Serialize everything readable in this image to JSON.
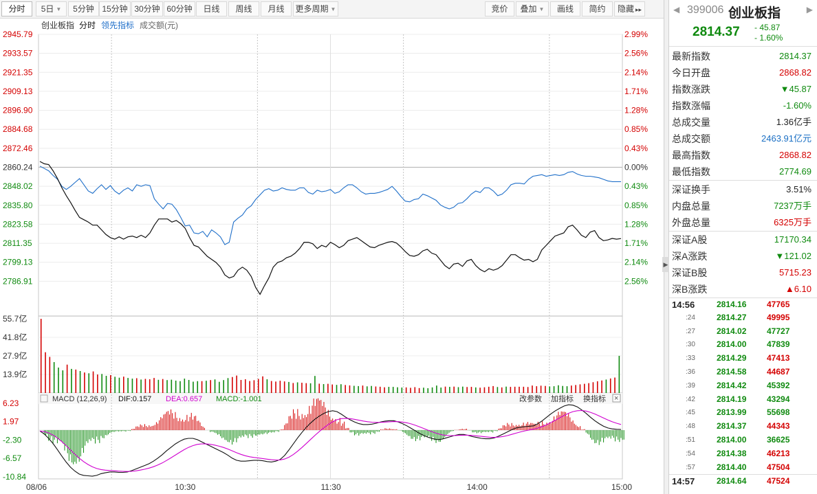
{
  "toolbar": {
    "left": [
      {
        "label": "分时",
        "active": true,
        "dropdown": false
      },
      {
        "label": "5日",
        "active": false,
        "dropdown": true
      },
      {
        "label": "5分钟",
        "active": false,
        "dropdown": false
      },
      {
        "label": "15分钟",
        "active": false,
        "dropdown": false
      },
      {
        "label": "30分钟",
        "active": false,
        "dropdown": false
      },
      {
        "label": "60分钟",
        "active": false,
        "dropdown": false
      },
      {
        "label": "日线",
        "active": false,
        "dropdown": false
      },
      {
        "label": "周线",
        "active": false,
        "dropdown": false
      },
      {
        "label": "月线",
        "active": false,
        "dropdown": false
      },
      {
        "label": "更多周期",
        "active": false,
        "dropdown": true
      }
    ],
    "right": [
      {
        "label": "竞价",
        "dropdown": false
      },
      {
        "label": "叠加",
        "dropdown": true
      },
      {
        "label": "画线",
        "dropdown": false
      },
      {
        "label": "简约",
        "dropdown": false
      },
      {
        "label": "隐藏",
        "dropdown": false,
        "suffix": "▸▸"
      }
    ]
  },
  "chart_header": {
    "index_name": "创业板指",
    "mode": "分时",
    "lead_indicator": "领先指标",
    "volume_label": "成交额(元)"
  },
  "price_axis": {
    "left": [
      "2945.79",
      "2933.57",
      "2921.35",
      "2909.13",
      "2896.90",
      "2884.68",
      "2872.46",
      "2860.24",
      "2848.02",
      "2835.80",
      "2823.58",
      "2811.35",
      "2799.13",
      "2786.91"
    ],
    "right": [
      "2.99%",
      "2.56%",
      "2.14%",
      "1.71%",
      "1.28%",
      "0.85%",
      "0.43%",
      "0.00%",
      "0.43%",
      "0.85%",
      "1.28%",
      "1.71%",
      "2.14%",
      "2.56%"
    ]
  },
  "volume_axis": [
    "55.7亿",
    "41.8亿",
    "27.9亿",
    "13.9亿"
  ],
  "macd_header": {
    "title": "MACD (12,26,9)",
    "dif": "DIF:0.157",
    "dea": "DEA:0.657",
    "macd": "MACD:-1.001",
    "change_params": "改参数",
    "add_indicator": "加指标",
    "switch_indicator": "换指标"
  },
  "macd_axis": [
    "6.23",
    "1.97",
    "-2.30",
    "-6.57",
    "-10.84"
  ],
  "time_axis": [
    "08/06",
    "10:30",
    "11:30",
    "14:00",
    "15:00"
  ],
  "colors": {
    "price_line": "#111111",
    "lead_line": "#1f6fc9",
    "up": "#d40000",
    "down": "#0f8a0f",
    "dif_line": "#111111",
    "dea_line": "#d000d0"
  },
  "quote": {
    "code": "399006",
    "name": "创业板指",
    "price": "2814.37",
    "change": "- 45.87",
    "change_pct": "- 1.60%"
  },
  "stats_a": [
    {
      "label": "最新指数",
      "value": "2814.37",
      "color": "green"
    },
    {
      "label": "今日开盘",
      "value": "2868.82",
      "color": "red"
    },
    {
      "label": "指数涨跌",
      "value": "▼45.87",
      "color": "green"
    },
    {
      "label": "指数涨幅",
      "value": "-1.60%",
      "color": "green"
    },
    {
      "label": "总成交量",
      "value": "1.36亿手",
      "color": "black"
    },
    {
      "label": "总成交额",
      "value": "2463.91亿元",
      "color": "blue"
    },
    {
      "label": "最高指数",
      "value": "2868.82",
      "color": "red"
    },
    {
      "label": "最低指数",
      "value": "2774.69",
      "color": "green"
    }
  ],
  "stats_b": [
    {
      "label": "深证换手",
      "value": "3.51%",
      "color": "black"
    },
    {
      "label": "内盘总量",
      "value": "7237万手",
      "color": "green"
    },
    {
      "label": "外盘总量",
      "value": "6325万手",
      "color": "red"
    }
  ],
  "stats_c": [
    {
      "label": "深证A股",
      "value": "17170.34",
      "color": "green"
    },
    {
      "label": "深A涨跌",
      "value": "▼121.02",
      "color": "green"
    },
    {
      "label": "深证B股",
      "value": "5715.23",
      "color": "red"
    },
    {
      "label": "深B涨跌",
      "value": "▲6.10",
      "color": "red"
    }
  ],
  "ticks": [
    {
      "time": "14:56",
      "minute": true,
      "price": "2814.16",
      "vol": "47765",
      "vol_color": "red"
    },
    {
      "time": ":24",
      "minute": false,
      "price": "2814.27",
      "vol": "49995",
      "vol_color": "red"
    },
    {
      "time": ":27",
      "minute": false,
      "price": "2814.02",
      "vol": "47727",
      "vol_color": "green"
    },
    {
      "time": ":30",
      "minute": false,
      "price": "2814.00",
      "vol": "47839",
      "vol_color": "green"
    },
    {
      "time": ":33",
      "minute": false,
      "price": "2814.29",
      "vol": "47413",
      "vol_color": "red"
    },
    {
      "time": ":36",
      "minute": false,
      "price": "2814.58",
      "vol": "44687",
      "vol_color": "red"
    },
    {
      "time": ":39",
      "minute": false,
      "price": "2814.42",
      "vol": "45392",
      "vol_color": "green"
    },
    {
      "time": ":42",
      "minute": false,
      "price": "2814.19",
      "vol": "43294",
      "vol_color": "green"
    },
    {
      "time": ":45",
      "minute": false,
      "price": "2813.99",
      "vol": "55698",
      "vol_color": "green"
    },
    {
      "time": ":48",
      "minute": false,
      "price": "2814.37",
      "vol": "44343",
      "vol_color": "red"
    },
    {
      "time": ":51",
      "minute": false,
      "price": "2814.00",
      "vol": "36625",
      "vol_color": "green"
    },
    {
      "time": ":54",
      "minute": false,
      "price": "2814.38",
      "vol": "46213",
      "vol_color": "red"
    },
    {
      "time": ":57",
      "minute": false,
      "price": "2814.40",
      "vol": "47504",
      "vol_color": "red"
    },
    {
      "time": "14:57",
      "minute": true,
      "price": "2814.64",
      "vol": "47524",
      "vol_color": "red"
    }
  ],
  "chart_data": {
    "type": "line",
    "prev_close": 2860.24,
    "ylim": [
      2774.69,
      2945.79
    ],
    "series": [
      {
        "name": "创业板指",
        "values": [
          2864.0,
          2862.5,
          2862.0,
          2858.0,
          2853.0,
          2847.0,
          2842.0,
          2837.5,
          2832.5,
          2828.0,
          2826.5,
          2825.0,
          2823.0,
          2823.0,
          2820.0,
          2817.0,
          2815.0,
          2814.0,
          2815.5,
          2814.0,
          2815.5,
          2816.0,
          2815.0,
          2816.5,
          2815.0,
          2818.0,
          2823.0,
          2827.0,
          2827.0,
          2827.0,
          2825.0,
          2826.0,
          2824.0,
          2821.0,
          2815.0,
          2810.0,
          2809.0,
          2806.0,
          2803.0,
          2801.0,
          2799.0,
          2796.0,
          2791.0,
          2789.0,
          2790.0,
          2794.0,
          2796.0,
          2794.0,
          2790.0,
          2783.0,
          2778.5,
          2784.0,
          2789.0,
          2796.0,
          2799.0,
          2800.0,
          2802.0,
          2803.0,
          2805.0,
          2808.0,
          2812.0,
          2812.0,
          2811.0,
          2808.0,
          2810.0,
          2809.0,
          2812.0,
          2810.5,
          2808.5,
          2810.0,
          2813.0,
          2814.0,
          2815.0,
          2813.0,
          2811.0,
          2809.0,
          2808.5,
          2810.0,
          2811.0,
          2812.0,
          2812.5,
          2811.5,
          2809.0,
          2806.0,
          2803.5,
          2803.0,
          2804.0,
          2806.5,
          2807.5,
          2805.0,
          2804.0,
          2800.5,
          2797.0,
          2795.0,
          2798.0,
          2798.5,
          2796.5,
          2800.0,
          2801.0,
          2797.0,
          2794.5,
          2793.0,
          2795.0,
          2794.0,
          2795.0,
          2797.0,
          2800.5,
          2804.0,
          2804.0,
          2802.0,
          2800.5,
          2801.0,
          2799.5,
          2801.0,
          2807.0,
          2810.0,
          2813.0,
          2816.0,
          2817.0,
          2818.0,
          2822.0,
          2823.0,
          2820.0,
          2816.5,
          2815.0,
          2818.5,
          2819.5,
          2815.0,
          2813.0,
          2813.5,
          2814.5,
          2814.0,
          2814.4
        ]
      },
      {
        "name": "领先指标",
        "values": [
          2861.0,
          2859.5,
          2858.0,
          2855.0,
          2852.5,
          2848.0,
          2846.0,
          2848.0,
          2850.5,
          2853.0,
          2849.0,
          2845.0,
          2843.5,
          2846.5,
          2849.0,
          2846.0,
          2848.5,
          2845.0,
          2843.0,
          2845.5,
          2847.0,
          2845.0,
          2849.0,
          2848.0,
          2849.0,
          2848.5,
          2840.0,
          2836.5,
          2833.5,
          2837.0,
          2836.5,
          2833.0,
          2828.0,
          2822.5,
          2823.0,
          2818.0,
          2817.5,
          2819.0,
          2815.5,
          2820.0,
          2818.0,
          2815.5,
          2810.5,
          2812.0,
          2825.0,
          2827.5,
          2829.5,
          2833.5,
          2835.5,
          2839.5,
          2842.5,
          2845.5,
          2846.5,
          2845.0,
          2845.5,
          2847.0,
          2846.0,
          2845.5,
          2845.5,
          2847.0,
          2847.0,
          2844.0,
          2843.0,
          2845.5,
          2844.5,
          2845.0,
          2846.0,
          2843.5,
          2844.5,
          2847.0,
          2849.0,
          2849.0,
          2847.0,
          2844.5,
          2843.0,
          2843.5,
          2843.5,
          2844.0,
          2845.0,
          2846.0,
          2848.0,
          2845.0,
          2841.5,
          2838.5,
          2838.0,
          2839.5,
          2840.0,
          2843.0,
          2842.0,
          2840.5,
          2839.0,
          2836.0,
          2834.5,
          2833.5,
          2834.5,
          2837.0,
          2837.5,
          2840.0,
          2843.0,
          2845.0,
          2844.0,
          2847.0,
          2847.0,
          2845.0,
          2842.0,
          2843.0,
          2845.5,
          2849.0,
          2850.0,
          2850.0,
          2849.5,
          2852.5,
          2854.5,
          2855.0,
          2855.5,
          2854.5,
          2855.0,
          2855.5,
          2855.0,
          2855.5,
          2857.0,
          2857.5,
          2856.0,
          2855.0,
          2854.5,
          2854.5,
          2854.0,
          2853.5,
          2852.5,
          2851.5,
          2851.0,
          2851.0,
          2851.0
        ]
      }
    ],
    "volume": {
      "ylim": [
        0,
        55.7
      ],
      "values": [
        55.7,
        30.6,
        27.1,
        23.2,
        19.1,
        17.0,
        21.3,
        18.1,
        17.6,
        16.5,
        15.4,
        14.8,
        16.2,
        13.9,
        14.3,
        12.9,
        13.4,
        12.2,
        11.5,
        12.3,
        11.3,
        10.8,
        11.1,
        10.1,
        10.6,
        10.3,
        11.3,
        9.9,
        10.5,
        9.7,
        10.0,
        9.3,
        8.9,
        10.8,
        9.8,
        8.5,
        8.9,
        8.9,
        9.2,
        9.7,
        10.2,
        8.4,
        9.7,
        11.2,
        12.0,
        13.1,
        9.8,
        10.3,
        9.0,
        9.6,
        10.6,
        12.5,
        10.3,
        9.0,
        8.6,
        9.2,
        8.7,
        8.3,
        7.5,
        8.0,
        7.7,
        7.4,
        7.3,
        12.8,
        7.0,
        6.7,
        6.9,
        6.4,
        6.1,
        6.6,
        6.0,
        5.7,
        5.4,
        5.2,
        5.6,
        5.0,
        5.3,
        4.9,
        4.7,
        4.3,
        4.6,
        4.6,
        4.3,
        4.1,
        4.2,
        3.9,
        4.4,
        3.7,
        4.0,
        3.6,
        4.2,
        5.6,
        4.1,
        4.8,
        4.6,
        4.8,
        4.4,
        4.8,
        4.5,
        4.6,
        4.2,
        4.0,
        4.3,
        4.7,
        5.2,
        4.5,
        4.2,
        4.8,
        4.6,
        4.7,
        4.7,
        4.7,
        4.5,
        5.6,
        5.1,
        5.5,
        5.3,
        4.9,
        5.1,
        5.8,
        5.3,
        5.1,
        5.6,
        6.0,
        6.5,
        6.9,
        7.4,
        8.1,
        8.8,
        9.4,
        10.1,
        10.9,
        11.6,
        27.9
      ],
      "colors": [
        "red",
        "red",
        "red",
        "green",
        "green",
        "green",
        "red",
        "green",
        "red",
        "green",
        "red",
        "green",
        "red",
        "red",
        "green",
        "green",
        "red",
        "green",
        "green",
        "red",
        "green",
        "green",
        "red",
        "green",
        "red",
        "red",
        "red",
        "green",
        "red",
        "green",
        "green",
        "green",
        "green",
        "green",
        "green",
        "green",
        "green",
        "red",
        "green",
        "red",
        "green",
        "green",
        "green",
        "green",
        "red",
        "red",
        "red",
        "red",
        "red",
        "red",
        "red",
        "red",
        "green",
        "red",
        "red",
        "red",
        "red",
        "green",
        "red",
        "green",
        "red",
        "red",
        "green",
        "green",
        "red",
        "green",
        "red",
        "red",
        "green",
        "green",
        "red",
        "red",
        "green",
        "green",
        "red",
        "green",
        "green",
        "red",
        "red",
        "red",
        "green",
        "green",
        "green",
        "green",
        "red",
        "red",
        "red",
        "red",
        "green",
        "green",
        "green",
        "green",
        "green",
        "red",
        "green",
        "red",
        "green",
        "green",
        "red",
        "red",
        "green",
        "red",
        "red",
        "red",
        "red",
        "green",
        "red",
        "green",
        "red",
        "red",
        "red",
        "red",
        "red",
        "red",
        "red",
        "red",
        "red",
        "green",
        "green",
        "green",
        "green",
        "green",
        "red",
        "red",
        "red",
        "red",
        "red",
        "red",
        "red",
        "red",
        "green",
        "red",
        "red",
        "green",
        "green",
        "green"
      ]
    },
    "macd": {
      "ylim": [
        -10.84,
        6.23
      ],
      "dif": [
        -0.2,
        -0.9,
        -1.9,
        -3.1,
        -4.5,
        -6.0,
        -7.4,
        -8.6,
        -9.5,
        -10.2,
        -10.5,
        -10.6,
        -10.7,
        -10.5,
        -10.1,
        -9.9,
        -9.7,
        -9.7,
        -9.8,
        -9.8,
        -9.7,
        -9.4,
        -9.0,
        -8.6,
        -8.2,
        -7.8,
        -7.2,
        -6.5,
        -5.7,
        -4.8,
        -4.0,
        -3.2,
        -2.6,
        -2.1,
        -1.9,
        -1.9,
        -2.2,
        -2.7,
        -3.2,
        -3.7,
        -4.2,
        -4.7,
        -5.2,
        -5.8,
        -6.5,
        -7.0,
        -7.2,
        -7.2,
        -7.1,
        -7.0,
        -7.0,
        -7.1,
        -7.3,
        -7.4,
        -7.2,
        -6.8,
        -5.9,
        -4.6,
        -3.2,
        -1.8,
        -0.5,
        0.7,
        1.7,
        2.6,
        3.3,
        3.9,
        4.3,
        4.5,
        4.3,
        3.7,
        3.0,
        2.4,
        1.9,
        1.5,
        1.3,
        1.3,
        1.4,
        1.6,
        1.9,
        2.1,
        2.2,
        2.2,
        1.9,
        1.5,
        1.0,
        0.4,
        -0.2,
        -0.8,
        -1.3,
        -1.7,
        -2.0,
        -2.2,
        -2.1,
        -1.8,
        -1.5,
        -1.2,
        -1.0,
        -1.0,
        -1.2,
        -1.5,
        -1.7,
        -1.9,
        -2.0,
        -2.0,
        -1.8,
        -1.4,
        -0.9,
        -0.4,
        0.1,
        0.5,
        0.7,
        0.8,
        0.9,
        1.0,
        1.5,
        2.2,
        3.0,
        3.8,
        4.5,
        5.1,
        5.6,
        5.9,
        5.8,
        5.4,
        4.7,
        3.9,
        3.0,
        2.2,
        1.5,
        0.9,
        0.5,
        0.3,
        0.2,
        0.16
      ]
    }
  }
}
